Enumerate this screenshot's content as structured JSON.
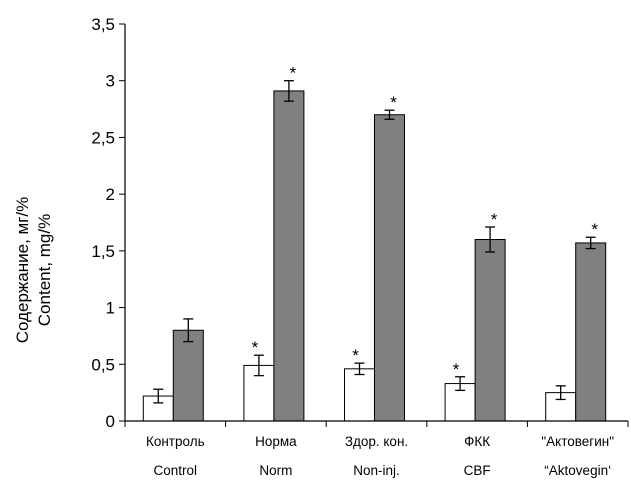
{
  "chart_data": {
    "type": "bar",
    "categories": [
      {
        "ru": "Контроль",
        "en": "Control"
      },
      {
        "ru": "Норма",
        "en": "Norm"
      },
      {
        "ru": "Здор. кон.",
        "en": "Non-inj."
      },
      {
        "ru": "ФКК",
        "en": "CBF"
      },
      {
        "ru": "\"Актовегин\"",
        "en": "“Aktovegin‘"
      }
    ],
    "series": [
      {
        "color": "#ffffff",
        "values": [
          0.22,
          0.49,
          0.46,
          0.33,
          0.25
        ],
        "errors": [
          0.06,
          0.09,
          0.05,
          0.06,
          0.06
        ],
        "significant": [
          false,
          true,
          true,
          true,
          false
        ]
      },
      {
        "color": "#808080",
        "values": [
          0.8,
          2.91,
          2.7,
          1.6,
          1.57
        ],
        "errors": [
          0.1,
          0.09,
          0.04,
          0.11,
          0.05
        ],
        "significant": [
          false,
          true,
          true,
          true,
          true
        ]
      }
    ],
    "ylabel_ru": "Содержание, мг/%",
    "ylabel_en": "Content, mg/%",
    "ylim": [
      0,
      3.5
    ],
    "yticks": [
      "0",
      "0,5",
      "1",
      "1,5",
      "2",
      "2,5",
      "3",
      "3,5"
    ],
    "significance_mark": "*",
    "grid": false,
    "legend": "none"
  }
}
